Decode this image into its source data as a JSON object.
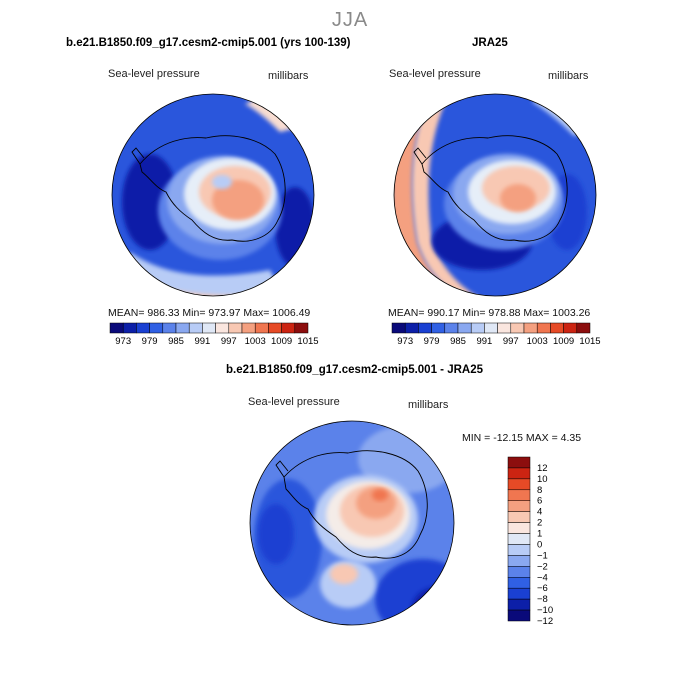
{
  "figure": {
    "title": "JJA"
  },
  "colors": {
    "full_scale": [
      "#0a0a7a",
      "#0c1fa8",
      "#1a40d2",
      "#3060e4",
      "#5b82ea",
      "#8aa8f0",
      "#b8ccf6",
      "#e0e8f6",
      "#fae6df",
      "#f8c8b3",
      "#f4a080",
      "#f07650",
      "#e64a26",
      "#cc2412",
      "#8c0e0e"
    ],
    "diff_scale": [
      "#0a0a7a",
      "#0c1fa8",
      "#1a40d2",
      "#3060e4",
      "#5b82ea",
      "#8aa8f0",
      "#b8ccf6",
      "#e0e8f6",
      "#fae6df",
      "#f8c8b3",
      "#f4a080",
      "#f07650",
      "#e64a26",
      "#cc2412",
      "#8c0e0e"
    ]
  },
  "panels": [
    {
      "title": "b.e21.B1850.f09_g17.cesm2-cmip5.001 (yrs 100-139)",
      "field_label": "Sea-level pressure",
      "unit_label": "millibars",
      "stats": "MEAN= 986.33   Min= 973.97   Max= 1006.49",
      "mean": 986.33,
      "min": 973.97,
      "max": 1006.49,
      "colorbar_ticks": [
        "973",
        "979",
        "985",
        "991",
        "997",
        "1003",
        "1009",
        "1015"
      ]
    },
    {
      "title": "JRA25",
      "field_label": "Sea-level pressure",
      "unit_label": "millibars",
      "stats": "MEAN= 990.17   Min= 978.88   Max= 1003.26",
      "mean": 990.17,
      "min": 978.88,
      "max": 1003.26,
      "colorbar_ticks": [
        "973",
        "979",
        "985",
        "991",
        "997",
        "1003",
        "1009",
        "1015"
      ]
    },
    {
      "title": "b.e21.B1850.f09_g17.cesm2-cmip5.001 - JRA25",
      "field_label": "Sea-level pressure",
      "unit_label": "millibars",
      "stats": "MIN = -12.15 MAX =   4.35",
      "min": -12.15,
      "max": 4.35,
      "colorbar_ticks": [
        "12",
        "10",
        "8",
        "6",
        "4",
        "2",
        "1",
        "0",
        "−1",
        "−2",
        "−4",
        "−6",
        "−8",
        "−10",
        "−12"
      ]
    }
  ]
}
